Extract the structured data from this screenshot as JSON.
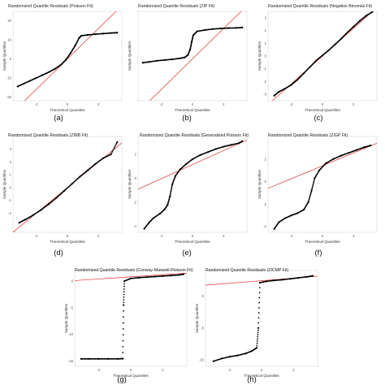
{
  "figure": {
    "panels": [
      {
        "caption": "(a)",
        "title": "Randomized Quantile Residuals (Poisson Fit)"
      },
      {
        "caption": "(b)",
        "title": "Randomized Quantile Residuals (ZIP Fit)"
      },
      {
        "caption": "(c)",
        "title": "Randomized Quantile Residuals (Negative Binomial Fit)"
      },
      {
        "caption": "(d)",
        "title": "Randomized Quantile Residuals (ZINB Fit)"
      },
      {
        "caption": "(e)",
        "title": "Randomized Quantile Residuals (Generalized Poisson Fit)"
      },
      {
        "caption": "(f)",
        "title": "Randomized Quantile Residuals (ZIGP Fit)"
      },
      {
        "caption": "(g)",
        "title": "Randomized Quantile Residuals (Conway-Maxwell-Poisson Fit)"
      },
      {
        "caption": "(h)",
        "title": "Randomized Quantile Residuals (ZICMP Fit)"
      }
    ],
    "xlabel": "Theoretical Quantiles",
    "ylabel": "Sample Quantiles",
    "colors": {
      "points": "#000000",
      "reference_line": "#e03030"
    }
  },
  "chart_data": [
    {
      "type": "scatter",
      "panel": "(a)",
      "title": "Randomized Quantile Residuals (Poisson Fit)",
      "xlabel": "Theoretical Quantiles",
      "ylabel": "Sample Quantiles",
      "xlim": [
        -3.5,
        3.5
      ],
      "ylim": [
        -22,
        25
      ],
      "xticks": [
        "-2",
        "0",
        "2"
      ],
      "yticks": [
        "20",
        "10",
        "0",
        "-10",
        "-20"
      ],
      "reference_line": [
        [
          -3.5,
          -28
        ],
        [
          3.5,
          28
        ]
      ],
      "points": [
        [
          -3.2,
          -14.5
        ],
        [
          -2.8,
          -13.0
        ],
        [
          -2.4,
          -11.5
        ],
        [
          -2.0,
          -10.0
        ],
        [
          -1.6,
          -8.5
        ],
        [
          -1.2,
          -7.0
        ],
        [
          -0.8,
          -5.2
        ],
        [
          -0.4,
          -3.0
        ],
        [
          -0.1,
          -0.5
        ],
        [
          0.2,
          3.0
        ],
        [
          0.5,
          7.0
        ],
        [
          0.75,
          11.0
        ],
        [
          0.9,
          12.2
        ],
        [
          1.3,
          12.6
        ],
        [
          1.8,
          13.0
        ],
        [
          2.3,
          13.3
        ],
        [
          2.8,
          13.6
        ],
        [
          3.2,
          13.8
        ]
      ]
    },
    {
      "type": "scatter",
      "panel": "(b)",
      "title": "Randomized Quantile Residuals (ZIP Fit)",
      "xlabel": "Theoretical Quantiles",
      "ylabel": "Sample Quantiles",
      "xlim": [
        -3.5,
        3.5
      ],
      "ylim": [
        -22,
        25
      ],
      "xticks": [
        "-2",
        "0",
        "2"
      ],
      "yticks": [],
      "reference_line": [
        [
          -3.5,
          -28
        ],
        [
          3.5,
          28
        ]
      ],
      "points": [
        [
          -3.2,
          -2.0
        ],
        [
          -2.8,
          -1.6
        ],
        [
          -2.3,
          -1.0
        ],
        [
          -1.8,
          -0.6
        ],
        [
          -1.3,
          -0.2
        ],
        [
          -0.8,
          0.3
        ],
        [
          -0.5,
          0.8
        ],
        [
          -0.3,
          2.0
        ],
        [
          -0.15,
          5.0
        ],
        [
          -0.05,
          9.0
        ],
        [
          0.05,
          12.5
        ],
        [
          0.3,
          14.5
        ],
        [
          0.8,
          15.2
        ],
        [
          1.3,
          15.7
        ],
        [
          1.8,
          16.0
        ],
        [
          2.3,
          16.2
        ],
        [
          2.8,
          16.3
        ],
        [
          3.2,
          16.5
        ]
      ]
    },
    {
      "type": "scatter",
      "panel": "(c)",
      "title": "Randomized Quantile Residuals (Negative Binomial Fit)",
      "xlabel": "Theoretical Quantiles",
      "ylabel": "Sample Quantiles",
      "xlim": [
        -3.5,
        3.5
      ],
      "ylim": [
        -3.5,
        3.5
      ],
      "xticks": [
        "-2",
        "0",
        "2"
      ],
      "yticks": [
        "3",
        "2",
        "1",
        "0",
        "-1",
        "-2",
        "-3"
      ],
      "reference_line": [
        [
          -3.5,
          -3.8
        ],
        [
          3.5,
          3.8
        ]
      ],
      "points": [
        [
          -3.1,
          -3.1
        ],
        [
          -2.8,
          -2.8
        ],
        [
          -2.4,
          -2.55
        ],
        [
          -2.0,
          -2.25
        ],
        [
          -1.6,
          -1.85
        ],
        [
          -1.2,
          -1.35
        ],
        [
          -0.8,
          -0.85
        ],
        [
          -0.4,
          -0.35
        ],
        [
          0.0,
          0.05
        ],
        [
          0.4,
          0.45
        ],
        [
          0.8,
          0.9
        ],
        [
          1.2,
          1.35
        ],
        [
          1.6,
          1.85
        ],
        [
          2.0,
          2.3
        ],
        [
          2.4,
          2.75
        ],
        [
          2.8,
          3.15
        ],
        [
          3.2,
          3.45
        ]
      ]
    },
    {
      "type": "scatter",
      "panel": "(d)",
      "title": "Randomized Quantile Residuals (ZINB Fit)",
      "xlabel": "Theoretical Quantiles",
      "ylabel": "Sample Quantiles",
      "xlim": [
        -3.5,
        3.5
      ],
      "ylim": [
        -3.5,
        4.0
      ],
      "xticks": [
        "-2",
        "0",
        "2"
      ],
      "yticks": [
        "3",
        "2",
        "1",
        "0",
        "-1",
        "-2"
      ],
      "reference_line": [
        [
          -3.5,
          -3.5
        ],
        [
          3.5,
          3.5
        ]
      ],
      "points": [
        [
          -3.1,
          -2.75
        ],
        [
          -2.7,
          -2.5
        ],
        [
          -2.2,
          -2.15
        ],
        [
          -1.7,
          -1.75
        ],
        [
          -1.2,
          -1.3
        ],
        [
          -0.7,
          -0.8
        ],
        [
          -0.2,
          -0.25
        ],
        [
          0.3,
          0.3
        ],
        [
          0.8,
          0.85
        ],
        [
          1.3,
          1.35
        ],
        [
          1.8,
          1.85
        ],
        [
          2.3,
          2.3
        ],
        [
          2.8,
          2.6
        ],
        [
          3.2,
          3.55
        ]
      ]
    },
    {
      "type": "scatter",
      "panel": "(e)",
      "title": "Randomized Quantile Residuals (Generalized Poisson Fit)",
      "xlabel": "Theoretical Quantiles",
      "ylabel": "Sample Quantiles",
      "xlim": [
        -3.5,
        3.5
      ],
      "ylim": [
        -4.5,
        3.5
      ],
      "xticks": [
        "-2",
        "0",
        "2"
      ],
      "yticks": [
        "2",
        "0",
        "-2",
        "-4"
      ],
      "reference_line": [
        [
          -3.5,
          -0.9
        ],
        [
          3.5,
          3.2
        ]
      ],
      "points": [
        [
          -3.1,
          -4.2
        ],
        [
          -2.8,
          -3.7
        ],
        [
          -2.5,
          -3.3
        ],
        [
          -2.1,
          -2.95
        ],
        [
          -1.8,
          -2.6
        ],
        [
          -1.6,
          -2.2
        ],
        [
          -1.45,
          -1.5
        ],
        [
          -1.3,
          -0.5
        ],
        [
          -1.1,
          0.2
        ],
        [
          -0.8,
          0.75
        ],
        [
          -0.4,
          1.2
        ],
        [
          0.0,
          1.6
        ],
        [
          0.5,
          1.95
        ],
        [
          1.0,
          2.2
        ],
        [
          1.5,
          2.45
        ],
        [
          2.0,
          2.65
        ],
        [
          2.5,
          2.8
        ],
        [
          3.0,
          2.95
        ],
        [
          3.2,
          3.1
        ]
      ]
    },
    {
      "type": "scatter",
      "panel": "(f)",
      "title": "Randomized Quantile Residuals (ZIGP Fit)",
      "xlabel": "Theoretical Quantiles",
      "ylabel": "Sample Quantiles",
      "xlim": [
        -3.5,
        3.5
      ],
      "ylim": [
        -4.5,
        4.0
      ],
      "xticks": [
        "-2",
        "0",
        "2"
      ],
      "yticks": [
        "2",
        "0",
        "-2",
        "-4"
      ],
      "reference_line": [
        [
          -3.5,
          -0.6
        ],
        [
          3.5,
          3.4
        ]
      ],
      "points": [
        [
          -3.1,
          -4.2
        ],
        [
          -2.8,
          -3.6
        ],
        [
          -2.4,
          -3.25
        ],
        [
          -2.0,
          -3.0
        ],
        [
          -1.6,
          -2.8
        ],
        [
          -1.2,
          -2.5
        ],
        [
          -0.9,
          -1.8
        ],
        [
          -0.7,
          -0.8
        ],
        [
          -0.5,
          0.3
        ],
        [
          -0.2,
          1.0
        ],
        [
          0.2,
          1.6
        ],
        [
          0.7,
          2.0
        ],
        [
          1.2,
          2.3
        ],
        [
          1.7,
          2.55
        ],
        [
          2.2,
          2.8
        ],
        [
          2.7,
          3.05
        ],
        [
          3.1,
          3.2
        ]
      ]
    },
    {
      "type": "scatter",
      "panel": "(g)",
      "title": "Randomized Quantile Residuals (Conway-Maxwell-Poisson Fit)",
      "xlabel": "Theoretical Quantiles",
      "ylabel": "Sample Quantiles",
      "xlim": [
        -3.5,
        3.5
      ],
      "ylim": [
        -16,
        2
      ],
      "xticks": [
        "-2",
        "0",
        "2"
      ],
      "yticks": [
        "0",
        "-5",
        "-10",
        "-15"
      ],
      "reference_line": [
        [
          -3.5,
          0.1
        ],
        [
          3.5,
          1.5
        ]
      ],
      "points": [
        [
          -3.1,
          -14.6
        ],
        [
          -2.6,
          -14.6
        ],
        [
          -2.0,
          -14.6
        ],
        [
          -1.4,
          -14.6
        ],
        [
          -0.8,
          -14.6
        ],
        [
          -0.5,
          -14.55
        ],
        [
          -0.45,
          -4.5
        ],
        [
          -0.4,
          0.0
        ],
        [
          0.0,
          0.5
        ],
        [
          0.5,
          0.65
        ],
        [
          1.0,
          0.75
        ],
        [
          1.5,
          0.85
        ],
        [
          2.0,
          0.95
        ],
        [
          2.5,
          1.05
        ],
        [
          3.0,
          1.15
        ],
        [
          3.3,
          1.3
        ]
      ]
    },
    {
      "type": "scatter",
      "panel": "(h)",
      "title": "Randomized Quantile Residuals (ZICMP Fit)",
      "xlabel": "Theoretical Quantiles",
      "ylabel": "Sample Quantiles",
      "xlim": [
        -3.5,
        3.5
      ],
      "ylim": [
        -11,
        4
      ],
      "xticks": [
        "-2",
        "0",
        "2"
      ],
      "yticks": [
        "0",
        "-5",
        "-10"
      ],
      "reference_line": [
        [
          -3.5,
          1.7
        ],
        [
          3.5,
          3.1
        ]
      ],
      "points": [
        [
          -3.0,
          -10.2
        ],
        [
          -2.5,
          -9.8
        ],
        [
          -2.0,
          -9.5
        ],
        [
          -1.5,
          -9.3
        ],
        [
          -1.0,
          -9.0
        ],
        [
          -0.6,
          -8.6
        ],
        [
          -0.3,
          -8.1
        ],
        [
          -0.2,
          -5.0
        ],
        [
          -0.1,
          2.1
        ],
        [
          0.3,
          2.3
        ],
        [
          0.8,
          2.45
        ],
        [
          1.3,
          2.55
        ],
        [
          1.8,
          2.7
        ],
        [
          2.3,
          2.85
        ],
        [
          2.8,
          3.0
        ],
        [
          3.2,
          3.15
        ]
      ]
    }
  ]
}
